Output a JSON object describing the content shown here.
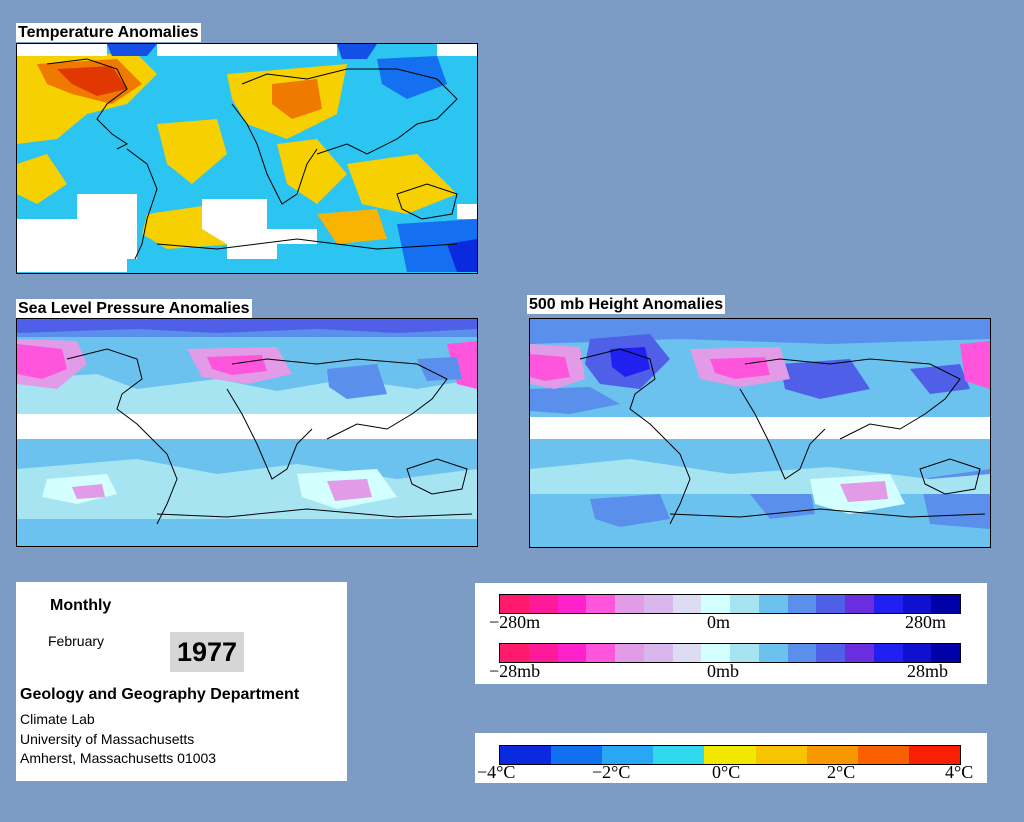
{
  "panels": {
    "temperature": {
      "title": "Temperature Anomalies"
    },
    "slp": {
      "title": "Sea Level Pressure Anomalies"
    },
    "height500": {
      "title": "500 mb Height Anomalies"
    }
  },
  "info": {
    "period": "Monthly",
    "month": "February",
    "year": "1977",
    "department": "Geology and Geography Department",
    "lab": "Climate Lab",
    "university": "University of Massachusetts",
    "address": "Amherst, Massachusetts 01003"
  },
  "legend_height": {
    "labels": [
      "−280m",
      "0m",
      "280m"
    ],
    "colors": [
      "#ff1a6e",
      "#ff1a9a",
      "#ff22cc",
      "#ff55dd",
      "#e29be6",
      "#d9b7ec",
      "#dcdcf2",
      "#d4ffff",
      "#a6e4f2",
      "#6cc2ee",
      "#5a8fec",
      "#4f5fe8",
      "#6a2ee0",
      "#2020f0",
      "#1010d0",
      "#0000a8"
    ]
  },
  "legend_pressure": {
    "labels": [
      "−28mb",
      "0mb",
      "28mb"
    ],
    "colors": [
      "#ff1a6e",
      "#ff1a9a",
      "#ff22cc",
      "#ff55dd",
      "#e29be6",
      "#d9b7ec",
      "#dcdcf2",
      "#d4ffff",
      "#a6e4f2",
      "#6cc2ee",
      "#5a8fec",
      "#4f5fe8",
      "#6a2ee0",
      "#2020f0",
      "#1010d0",
      "#0000a8"
    ]
  },
  "legend_temperature": {
    "labels": [
      "−4°C",
      "−2°C",
      "0°C",
      "2°C",
      "4°C"
    ],
    "colors": [
      "#0a2ae0",
      "#1070f0",
      "#28a8f4",
      "#30d8f0",
      "#f0e800",
      "#f8c400",
      "#f89800",
      "#f86000",
      "#f82000"
    ]
  }
}
